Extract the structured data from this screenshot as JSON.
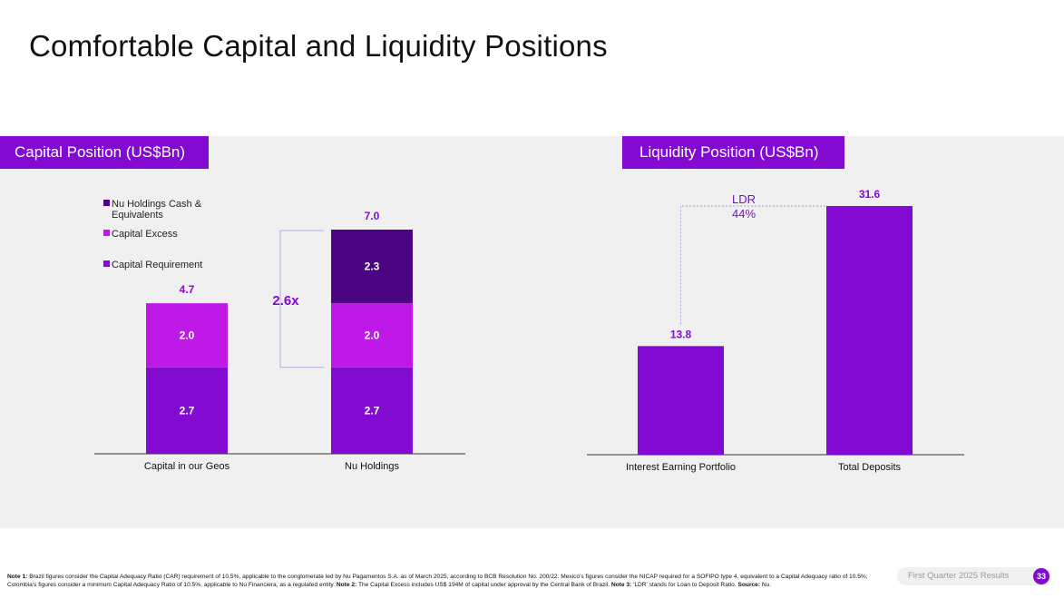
{
  "page": {
    "title": "Comfortable Capital and Liquidity Positions",
    "footer_label": "First Quarter 2025 Results",
    "page_number": "33"
  },
  "colors": {
    "brand_purple": "#820ad1",
    "magenta": "#bf19e8",
    "dark_purple": "#4c0582",
    "panel_bg": "#f0f0f0"
  },
  "footnote": {
    "note1_label": "Note 1:",
    "note1_text": " Brazil figures consider the Capital Adequacy Ratio (CAR) requirement of 10.5%, applicable to the conglomerate led by Nu Pagamentos S.A. as of March 2025, according to BCB Resolution No. 200/22. Mexico's figures consider the NICAP required for a SOFIPO type 4, equivalent to a Capital Adequacy ratio of 10.5%; Colombia's figures consider a minimum Capital Adequacy Ratio of 10.5%, applicable to Nu Financiera, as a regulated entity. ",
    "note2_label": "Note 2:",
    "note2_text": " The Capital Excess includes US$ 194M of capital under approval by the Central Bank of Brazil. ",
    "note3_label": "Note 3:",
    "note3_text": " 'LDR' stands for Loan to Deposit Ratio. ",
    "source_label": "Source:",
    "source_text": " Nu."
  },
  "chart_data": [
    {
      "type": "bar",
      "stacked": true,
      "section_title": "Capital Position  (US$Bn)",
      "categories": [
        "Capital in our Geos",
        "Nu Holdings"
      ],
      "series": [
        {
          "name": "Capital Requirement",
          "values": [
            2.7,
            2.7
          ],
          "color": "#820ad1"
        },
        {
          "name": "Capital Excess",
          "values": [
            2.0,
            2.0
          ],
          "color": "#bf19e8"
        },
        {
          "name": "Nu Holdings Cash & Equivalents",
          "values": [
            0,
            2.3
          ],
          "color": "#4c0582"
        }
      ],
      "data_labels": [
        [
          "2.7",
          "2.7"
        ],
        [
          "2.0",
          "2.0"
        ],
        [
          "",
          "2.3"
        ]
      ],
      "totals": [
        "4.7",
        "7.0"
      ],
      "legend_order": [
        "Nu Holdings Cash & Equivalents",
        "Capital Excess",
        "Capital Requirement"
      ],
      "legend_lines": [
        [
          "Nu Holdings Cash &",
          "Equivalents"
        ],
        [
          "Capital Excess"
        ],
        [
          "Capital Requirement"
        ]
      ],
      "legend_position": "top-left",
      "annotation": {
        "text": "2.6x",
        "description": "Capital Excess multiple bracket"
      },
      "ylim": [
        0,
        7.2
      ]
    },
    {
      "type": "bar",
      "section_title": "Liquidity Position (US$Bn)",
      "categories": [
        "Interest Earning Portfolio",
        "Total Deposits"
      ],
      "values": [
        13.8,
        31.6
      ],
      "data_labels": [
        "13.8",
        "31.6"
      ],
      "color": "#820ad1",
      "annotation": {
        "lines": [
          "LDR",
          "44%"
        ]
      },
      "ylim": [
        0,
        32
      ]
    }
  ]
}
